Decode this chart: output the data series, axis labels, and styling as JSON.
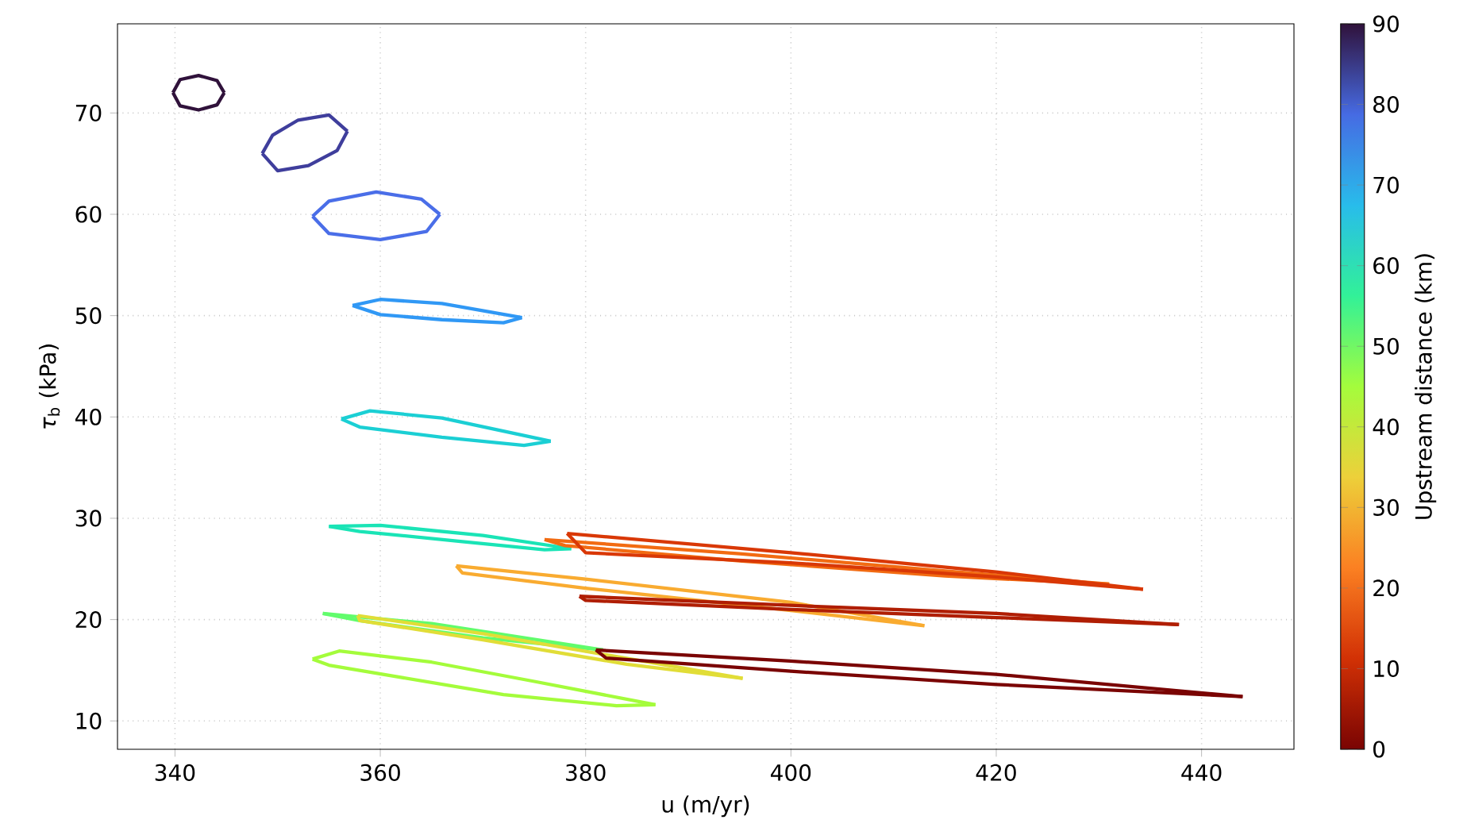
{
  "chart_data": {
    "type": "line",
    "xlabel": "u (m/yr)",
    "ylabel": "*τ*$_{b}$ (kPa)",
    "clabel": "Upstream distance (km)",
    "xlim": [
      334.4,
      449
    ],
    "ylim": [
      7.2,
      78.8
    ],
    "xticks": [
      340,
      360,
      380,
      400,
      420,
      440
    ],
    "yticks": [
      10,
      20,
      30,
      40,
      50,
      60,
      70
    ],
    "clim": [
      0,
      90
    ],
    "cticks": [
      0,
      10,
      20,
      30,
      40,
      50,
      60,
      70,
      80,
      90
    ],
    "grid": true,
    "marker": "none",
    "line_style": "solid",
    "series": [
      {
        "color": "#30123b",
        "x": [
          339.8,
          340.5,
          342.3,
          344.1,
          344.8
        ],
        "values": [
          72.0,
          73.3,
          73.7,
          73.2,
          72.0
        ]
      },
      {
        "color": "#30123b",
        "x": [
          339.8,
          340.5,
          342.3,
          344.1,
          344.8
        ],
        "values": [
          72.0,
          70.7,
          70.3,
          70.8,
          72.0
        ]
      },
      {
        "color": "#3f3e9c",
        "x": [
          348.5,
          349.5,
          352.0,
          355.0,
          356.8
        ],
        "values": [
          66.0,
          67.8,
          69.3,
          69.8,
          68.2
        ]
      },
      {
        "color": "#3f3e9c",
        "x": [
          348.5,
          350.0,
          353.0,
          355.8,
          356.8
        ],
        "values": [
          66.0,
          64.3,
          64.8,
          66.3,
          68.2
        ]
      },
      {
        "color": "#4a6ee8",
        "x": [
          353.4,
          355.0,
          359.6,
          364.0,
          365.8
        ],
        "values": [
          59.8,
          61.3,
          62.2,
          61.5,
          60.0
        ]
      },
      {
        "color": "#4a6ee8",
        "x": [
          353.4,
          355.0,
          360.0,
          364.5,
          365.8
        ],
        "values": [
          59.8,
          58.1,
          57.5,
          58.3,
          60.0
        ]
      },
      {
        "color": "#3098f5",
        "x": [
          357.3,
          360.0,
          366.0,
          373.8
        ],
        "values": [
          51.0,
          51.6,
          51.2,
          49.8
        ]
      },
      {
        "color": "#3098f5",
        "x": [
          357.3,
          360.0,
          366.0,
          372.0,
          373.8
        ],
        "values": [
          51.0,
          50.1,
          49.6,
          49.3,
          49.8
        ]
      },
      {
        "color": "#1bcfd4",
        "x": [
          356.2,
          359.0,
          366.0,
          376.6
        ],
        "values": [
          39.8,
          40.6,
          39.9,
          37.6
        ]
      },
      {
        "color": "#1bcfd4",
        "x": [
          356.2,
          358.0,
          366.0,
          374.0,
          376.6
        ],
        "values": [
          39.8,
          39.0,
          38.0,
          37.2,
          37.6
        ]
      },
      {
        "color": "#1ae4b6",
        "x": [
          355.0,
          360.0,
          370.0,
          378.6
        ],
        "values": [
          29.2,
          29.3,
          28.3,
          27.0
        ]
      },
      {
        "color": "#1ae4b6",
        "x": [
          355.0,
          358.0,
          368.0,
          376.0,
          378.6
        ],
        "values": [
          29.2,
          28.7,
          27.7,
          26.9,
          27.0
        ]
      },
      {
        "color": "#61fc6c",
        "x": [
          354.4,
          365.0,
          381.7
        ],
        "values": [
          20.6,
          19.6,
          17.0
        ]
      },
      {
        "color": "#61fc6c",
        "x": [
          354.4,
          358.0,
          370.0,
          381.7
        ],
        "values": [
          20.6,
          19.9,
          18.2,
          17.0
        ]
      },
      {
        "color": "#a4fc3b",
        "x": [
          353.4,
          356.0,
          365.0,
          375.0,
          386.8
        ],
        "values": [
          16.1,
          16.9,
          15.8,
          13.9,
          11.6
        ]
      },
      {
        "color": "#a4fc3b",
        "x": [
          353.4,
          355.0,
          362.0,
          372.0,
          383.0,
          386.8
        ],
        "values": [
          16.1,
          15.5,
          14.3,
          12.6,
          11.5,
          11.6
        ]
      },
      {
        "color": "#e1dd37",
        "x": [
          357.8,
          370.0,
          385.0,
          395.3
        ],
        "values": [
          20.4,
          18.6,
          16.0,
          14.2
        ]
      },
      {
        "color": "#e1dd37",
        "x": [
          357.8,
          358.0,
          370.0,
          384.0,
          395.3
        ],
        "values": [
          20.4,
          19.9,
          18.0,
          15.6,
          14.2
        ]
      },
      {
        "color": "#f9ab30",
        "x": [
          367.4,
          380.0,
          400.0,
          413.0
        ],
        "values": [
          25.3,
          24.0,
          21.7,
          19.4
        ]
      },
      {
        "color": "#f9ab30",
        "x": [
          367.4,
          368.0,
          380.0,
          400.0,
          413.0
        ],
        "values": [
          25.3,
          24.6,
          23.1,
          20.9,
          19.4
        ]
      },
      {
        "color": "#b01e03",
        "x": [
          379.4,
          400.0,
          420.0,
          437.8
        ],
        "values": [
          22.3,
          21.4,
          20.6,
          19.5
        ]
      },
      {
        "color": "#b01e03",
        "x": [
          379.4,
          380.0,
          400.0,
          420.0,
          437.8
        ],
        "values": [
          22.3,
          21.9,
          21.0,
          20.2,
          19.5
        ]
      },
      {
        "color": "#7a0403",
        "x": [
          381.0,
          400.0,
          420.0,
          444.0
        ],
        "values": [
          17.0,
          15.9,
          14.6,
          12.4
        ]
      },
      {
        "color": "#7a0403",
        "x": [
          381.0,
          382.0,
          400.0,
          420.0,
          444.0
        ],
        "values": [
          17.0,
          16.2,
          14.9,
          13.6,
          12.4
        ]
      },
      {
        "color": "#f26b12",
        "x": [
          376.0,
          395.0,
          415.0,
          431.0
        ],
        "values": [
          27.9,
          26.5,
          24.8,
          23.5
        ]
      },
      {
        "color": "#f26b12",
        "x": [
          376.0,
          378.0,
          395.0,
          415.0,
          431.0
        ],
        "values": [
          27.9,
          27.3,
          25.8,
          24.3,
          23.5
        ]
      },
      {
        "color": "#d93806",
        "x": [
          378.2,
          400.0,
          420.0,
          434.3
        ],
        "values": [
          28.5,
          26.6,
          24.7,
          23.0
        ]
      },
      {
        "color": "#d93806",
        "x": [
          378.2,
          380.0,
          400.0,
          420.0,
          434.3
        ],
        "values": [
          28.5,
          26.6,
          25.6,
          24.2,
          23.0
        ]
      }
    ]
  }
}
